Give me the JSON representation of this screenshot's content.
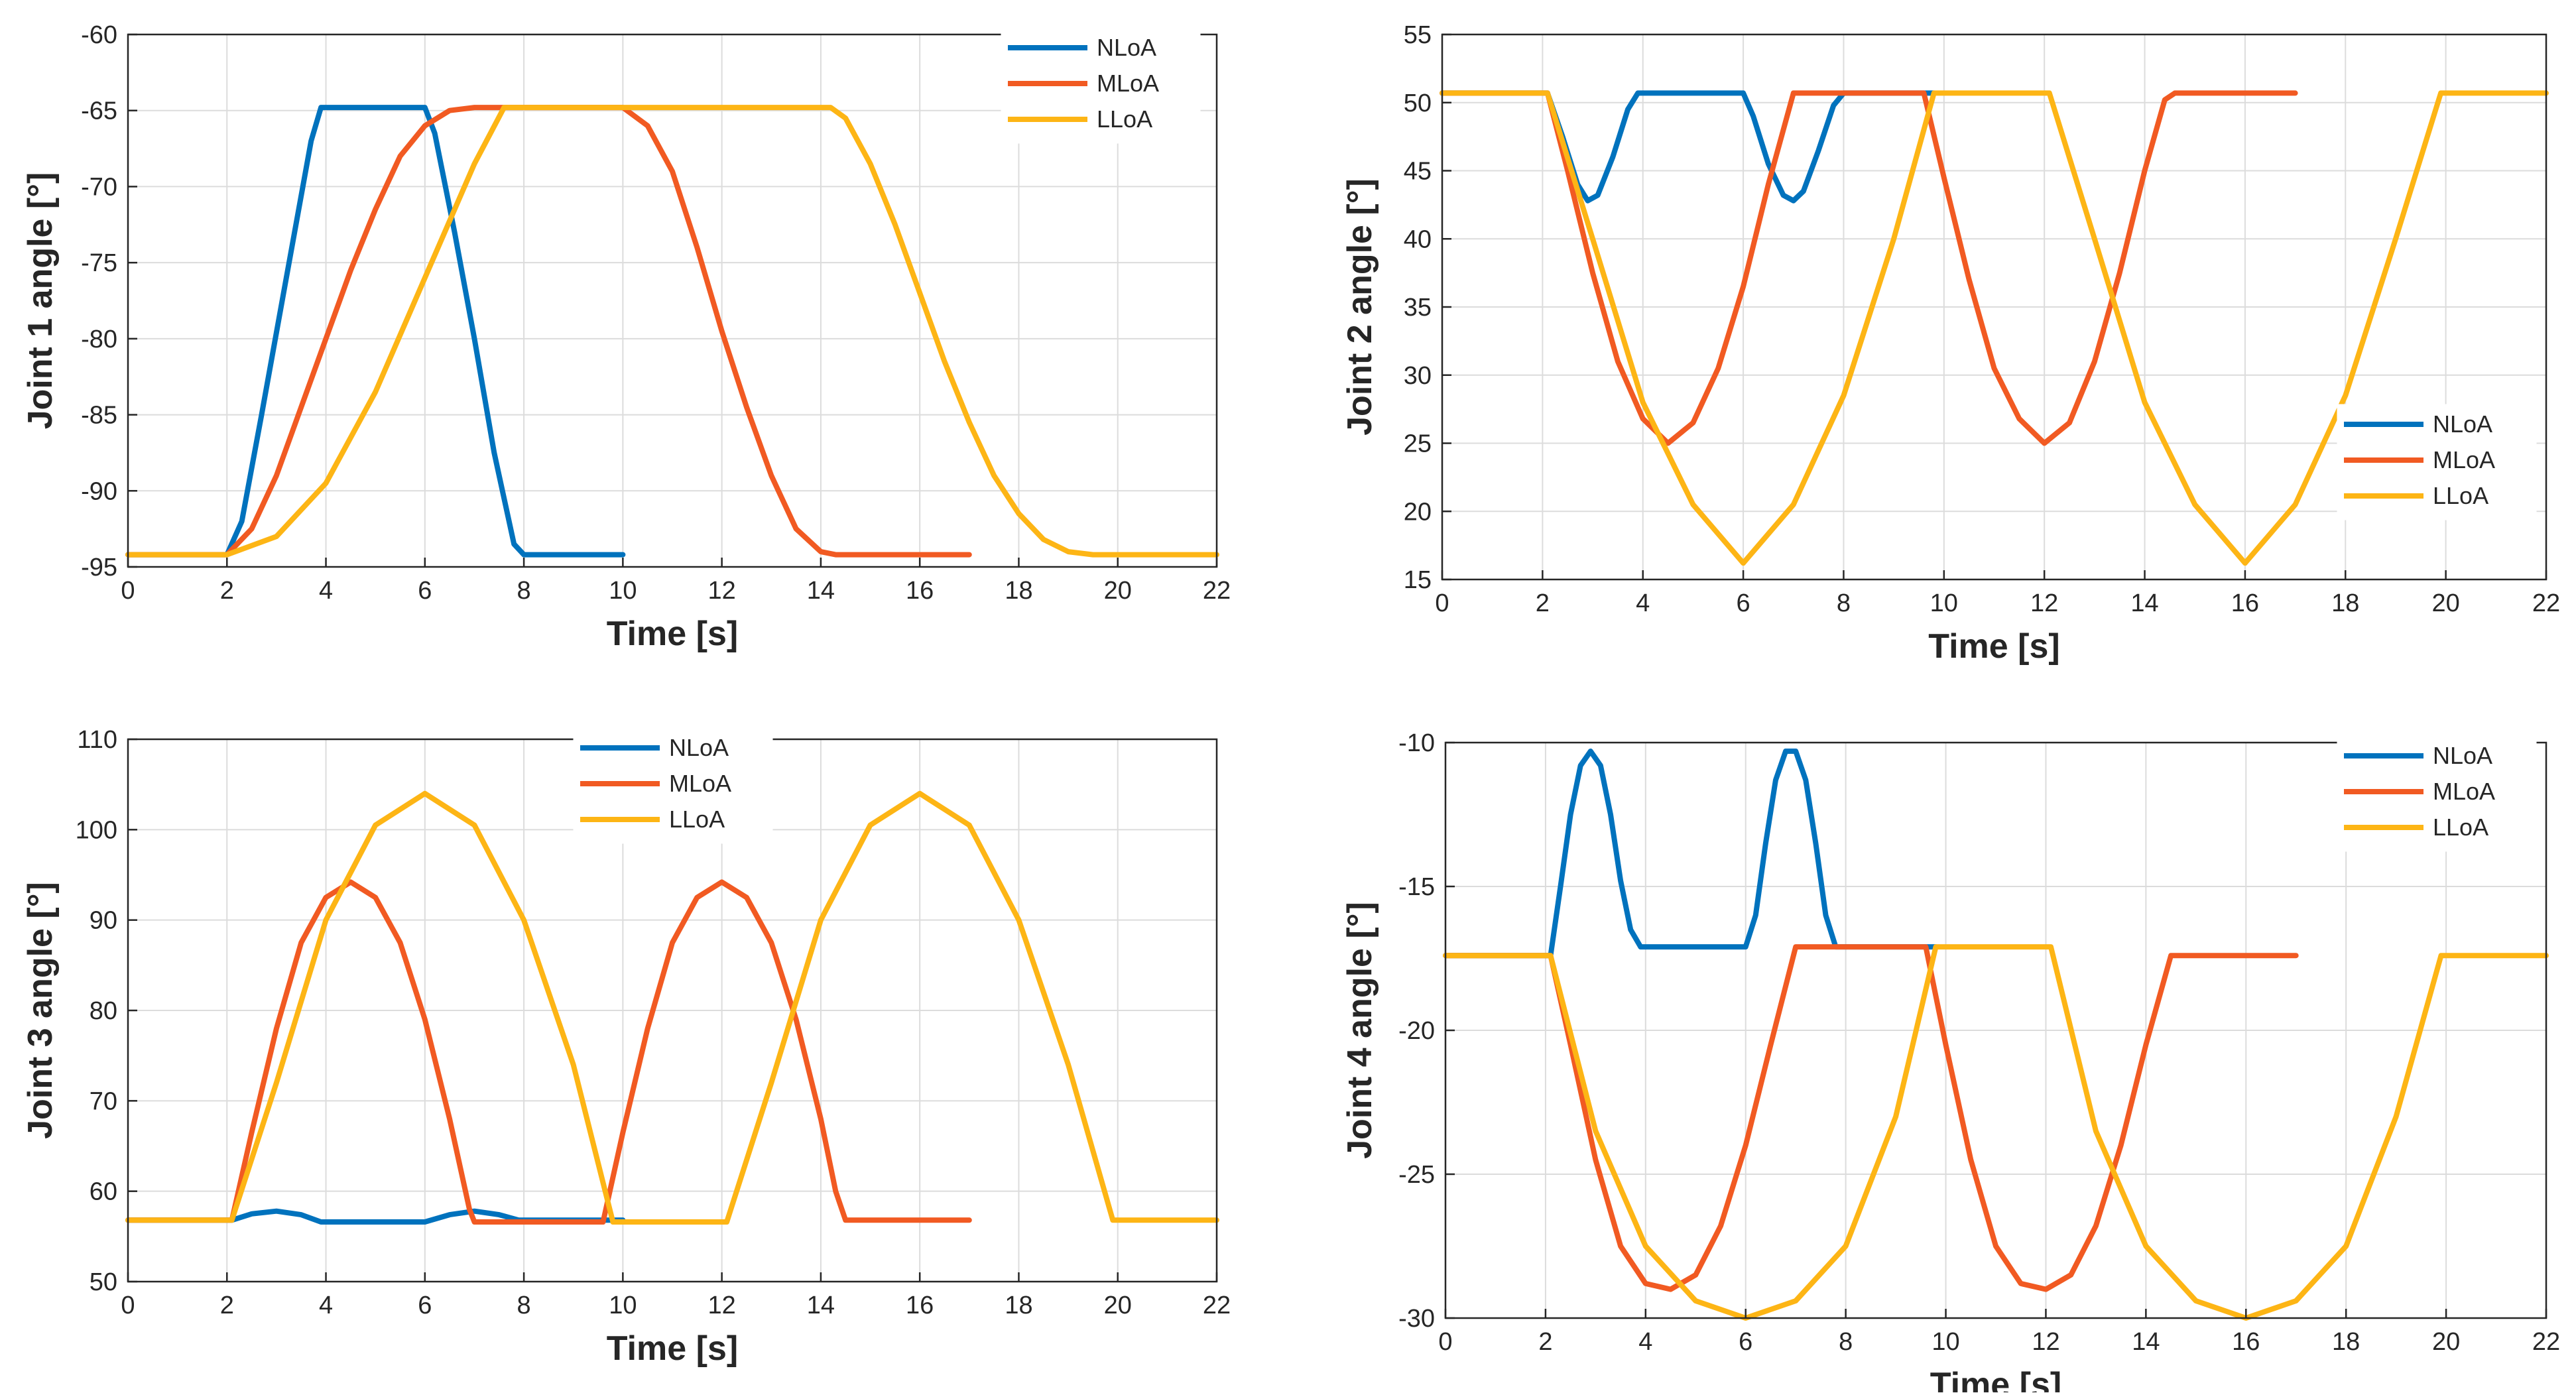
{
  "series_styles": [
    {
      "name": "NLoA",
      "color": "#0072BD"
    },
    {
      "name": "MLoA",
      "color": "#F15A22"
    },
    {
      "name": "LLoA",
      "color": "#FDB515"
    }
  ],
  "chart_data": [
    {
      "type": "line",
      "title": "",
      "xlabel": "Time [s]",
      "ylabel": "Joint 1 angle [°]",
      "xlim": [
        0,
        22
      ],
      "ylim": [
        -95,
        -60
      ],
      "xticks": [
        0,
        2,
        4,
        6,
        8,
        10,
        12,
        14,
        16,
        18,
        20,
        22
      ],
      "yticks": [
        -95,
        -90,
        -85,
        -80,
        -75,
        -70,
        -65,
        -60
      ],
      "grid": true,
      "legend_position": "top-right",
      "series": [
        {
          "name": "NLoA",
          "x": [
            0,
            2.0,
            2.3,
            2.7,
            3.2,
            3.7,
            3.9,
            6.0,
            6.2,
            6.6,
            7.0,
            7.4,
            7.8,
            8.0,
            10.0
          ],
          "y": [
            -94.2,
            -94.2,
            -92.0,
            -85.0,
            -76.0,
            -67.0,
            -64.8,
            -64.8,
            -66.5,
            -73.0,
            -80.0,
            -87.5,
            -93.5,
            -94.2,
            -94.2
          ]
        },
        {
          "name": "MLoA",
          "x": [
            0,
            2.0,
            2.5,
            3.0,
            3.5,
            4.0,
            4.5,
            5.0,
            5.5,
            6.0,
            6.5,
            7.0,
            10.0,
            10.5,
            11.0,
            11.5,
            12.0,
            12.5,
            13.0,
            13.5,
            14.0,
            14.3,
            17.0
          ],
          "y": [
            -94.2,
            -94.2,
            -92.5,
            -89.0,
            -84.5,
            -80.0,
            -75.5,
            -71.5,
            -68.0,
            -66.0,
            -65.0,
            -64.8,
            -64.8,
            -66.0,
            -69.0,
            -74.0,
            -79.5,
            -84.5,
            -89.0,
            -92.5,
            -94.0,
            -94.2,
            -94.2
          ]
        },
        {
          "name": "LLoA",
          "x": [
            0,
            2.0,
            3.0,
            4.0,
            5.0,
            6.0,
            7.0,
            7.6,
            14.2,
            14.5,
            15.0,
            15.5,
            16.0,
            16.5,
            17.0,
            17.5,
            18.0,
            18.5,
            19.0,
            19.5,
            19.8,
            22.0
          ],
          "y": [
            -94.2,
            -94.2,
            -93.0,
            -89.5,
            -83.5,
            -76.0,
            -68.5,
            -64.8,
            -64.8,
            -65.5,
            -68.5,
            -72.5,
            -77.0,
            -81.5,
            -85.5,
            -89.0,
            -91.5,
            -93.2,
            -94.0,
            -94.2,
            -94.2,
            -94.2
          ]
        }
      ]
    },
    {
      "type": "line",
      "title": "",
      "xlabel": "Time [s]",
      "ylabel": "Joint 2 angle [°]",
      "xlim": [
        0,
        22
      ],
      "ylim": [
        15,
        55
      ],
      "xticks": [
        0,
        2,
        4,
        6,
        8,
        10,
        12,
        14,
        16,
        18,
        20,
        22
      ],
      "yticks": [
        15,
        20,
        25,
        30,
        35,
        40,
        45,
        50,
        55
      ],
      "grid": true,
      "legend_position": "bottom-right",
      "series": [
        {
          "name": "NLoA",
          "x": [
            0,
            2.1,
            2.4,
            2.7,
            2.9,
            3.1,
            3.4,
            3.7,
            3.9,
            6.0,
            6.2,
            6.5,
            6.8,
            7.0,
            7.2,
            7.5,
            7.8,
            8.0,
            9.8
          ],
          "y": [
            50.7,
            50.7,
            47.5,
            44.0,
            42.8,
            43.2,
            46.0,
            49.5,
            50.7,
            50.7,
            49.0,
            45.5,
            43.2,
            42.8,
            43.5,
            46.5,
            49.8,
            50.7,
            50.7
          ]
        },
        {
          "name": "MLoA",
          "x": [
            0,
            2.1,
            2.5,
            3.0,
            3.5,
            4.0,
            4.5,
            5.0,
            5.5,
            6.0,
            6.5,
            7.0,
            9.6,
            10.0,
            10.5,
            11.0,
            11.5,
            12.0,
            12.5,
            13.0,
            13.5,
            14.0,
            14.4,
            14.6,
            17.0
          ],
          "y": [
            50.7,
            50.7,
            45.0,
            37.5,
            31.0,
            26.8,
            25.0,
            26.5,
            30.5,
            36.5,
            44.0,
            50.7,
            50.7,
            44.5,
            37.0,
            30.5,
            26.8,
            25.0,
            26.5,
            31.0,
            37.5,
            45.0,
            50.2,
            50.7,
            50.7
          ]
        },
        {
          "name": "LLoA",
          "x": [
            0,
            2.1,
            3.0,
            4.0,
            5.0,
            6.0,
            7.0,
            8.0,
            9.0,
            9.8,
            12.1,
            13.0,
            14.0,
            15.0,
            16.0,
            17.0,
            18.0,
            19.0,
            19.9,
            22.0
          ],
          "y": [
            50.7,
            50.7,
            40.0,
            28.0,
            20.5,
            16.2,
            20.5,
            28.5,
            40.0,
            50.7,
            50.7,
            40.0,
            28.0,
            20.5,
            16.2,
            20.5,
            28.5,
            40.0,
            50.7,
            50.7
          ]
        }
      ]
    },
    {
      "type": "line",
      "title": "",
      "xlabel": "Time [s]",
      "ylabel": "Joint 3 angle [°]",
      "xlim": [
        0,
        22
      ],
      "ylim": [
        50,
        110
      ],
      "xticks": [
        0,
        2,
        4,
        6,
        8,
        10,
        12,
        14,
        16,
        18,
        20,
        22
      ],
      "yticks": [
        50,
        60,
        70,
        80,
        90,
        100,
        110
      ],
      "grid": true,
      "legend_position": "top-center",
      "series": [
        {
          "name": "NLoA",
          "x": [
            0,
            2.1,
            2.5,
            3.0,
            3.5,
            3.9,
            6.0,
            6.5,
            7.0,
            7.5,
            7.9,
            10.0
          ],
          "y": [
            56.8,
            56.8,
            57.5,
            57.8,
            57.4,
            56.6,
            56.6,
            57.4,
            57.8,
            57.4,
            56.8,
            56.8
          ]
        },
        {
          "name": "MLoA",
          "x": [
            0,
            2.1,
            2.5,
            3.0,
            3.5,
            4.0,
            4.5,
            5.0,
            5.5,
            6.0,
            6.5,
            6.9,
            7.0,
            9.6,
            10.0,
            10.5,
            11.0,
            11.5,
            12.0,
            12.5,
            13.0,
            13.5,
            14.0,
            14.3,
            14.5,
            17.0
          ],
          "y": [
            56.8,
            56.8,
            66.5,
            78.0,
            87.5,
            92.5,
            94.2,
            92.5,
            87.5,
            79.0,
            68.0,
            58.0,
            56.6,
            56.6,
            66.5,
            78.0,
            87.5,
            92.5,
            94.2,
            92.5,
            87.5,
            79.0,
            68.0,
            60.0,
            56.8,
            56.8
          ]
        },
        {
          "name": "LLoA",
          "x": [
            0,
            2.1,
            3.0,
            4.0,
            5.0,
            6.0,
            7.0,
            8.0,
            9.0,
            9.8,
            12.1,
            13.0,
            14.0,
            15.0,
            16.0,
            17.0,
            18.0,
            19.0,
            19.9,
            22.0
          ],
          "y": [
            56.8,
            56.8,
            72.0,
            90.0,
            100.5,
            104.0,
            100.5,
            90.0,
            74.0,
            56.6,
            56.6,
            72.0,
            90.0,
            100.5,
            104.0,
            100.5,
            90.0,
            74.0,
            56.8,
            56.8
          ]
        }
      ]
    },
    {
      "type": "line",
      "title": "",
      "xlabel": "Time [s]",
      "ylabel": "Joint 4 angle [°]",
      "xlim": [
        0,
        22
      ],
      "ylim": [
        -30,
        -10
      ],
      "xticks": [
        0,
        2,
        4,
        6,
        8,
        10,
        12,
        14,
        16,
        18,
        20,
        22
      ],
      "yticks": [
        -30,
        -25,
        -20,
        -15,
        -10
      ],
      "grid": true,
      "legend_position": "top-right",
      "series": [
        {
          "name": "NLoA",
          "x": [
            0,
            2.1,
            2.3,
            2.5,
            2.7,
            2.9,
            3.1,
            3.3,
            3.5,
            3.7,
            3.9,
            6.0,
            6.2,
            6.4,
            6.6,
            6.8,
            7.0,
            7.2,
            7.4,
            7.6,
            7.8,
            8.0,
            9.8
          ],
          "y": [
            -17.4,
            -17.4,
            -15.0,
            -12.5,
            -10.8,
            -10.3,
            -10.8,
            -12.5,
            -14.8,
            -16.5,
            -17.1,
            -17.1,
            -16.0,
            -13.5,
            -11.3,
            -10.3,
            -10.3,
            -11.3,
            -13.5,
            -16.0,
            -17.1,
            -17.1,
            -17.1
          ]
        },
        {
          "name": "MLoA",
          "x": [
            0,
            2.1,
            2.5,
            3.0,
            3.5,
            4.0,
            4.5,
            5.0,
            5.5,
            6.0,
            6.5,
            7.0,
            9.6,
            10.0,
            10.5,
            11.0,
            11.5,
            12.0,
            12.5,
            13.0,
            13.5,
            14.0,
            14.5,
            17.0
          ],
          "y": [
            -17.4,
            -17.4,
            -20.5,
            -24.5,
            -27.5,
            -28.8,
            -29.0,
            -28.5,
            -26.8,
            -24.0,
            -20.5,
            -17.1,
            -17.1,
            -20.5,
            -24.5,
            -27.5,
            -28.8,
            -29.0,
            -28.5,
            -26.8,
            -24.0,
            -20.5,
            -17.4,
            -17.4
          ]
        },
        {
          "name": "LLoA",
          "x": [
            0,
            2.1,
            3.0,
            4.0,
            5.0,
            6.0,
            7.0,
            8.0,
            9.0,
            9.8,
            12.1,
            13.0,
            14.0,
            15.0,
            16.0,
            17.0,
            18.0,
            19.0,
            19.9,
            22.0
          ],
          "y": [
            -17.4,
            -17.4,
            -23.5,
            -27.5,
            -29.4,
            -30.0,
            -29.4,
            -27.5,
            -23.0,
            -17.1,
            -17.1,
            -23.5,
            -27.5,
            -29.4,
            -30.0,
            -29.4,
            -27.5,
            -23.0,
            -17.4,
            -17.4
          ]
        }
      ]
    }
  ]
}
